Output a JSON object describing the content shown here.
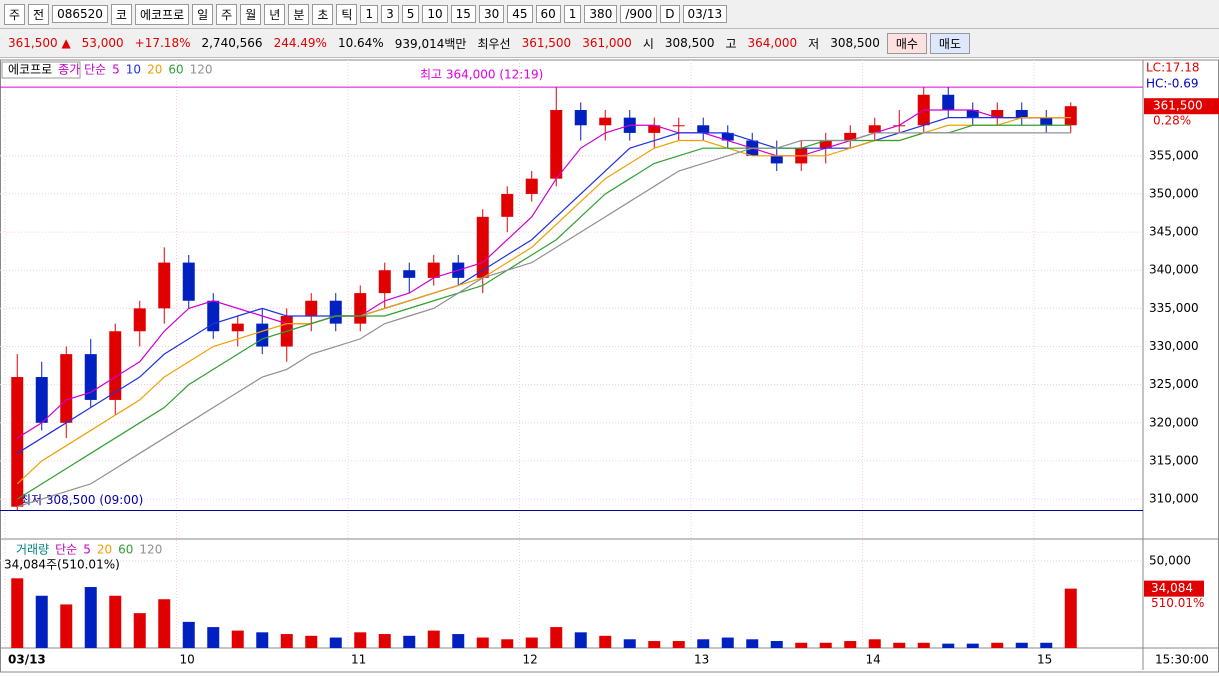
{
  "toolbar": {
    "items": [
      "주",
      "전",
      "086520",
      "코",
      "에코프로",
      "일",
      "주",
      "월",
      "년",
      "분",
      "초",
      "틱",
      "1",
      "3",
      "5",
      "10",
      "15",
      "30",
      "45",
      "60",
      "1",
      "380",
      "/900",
      "D",
      "03/13"
    ]
  },
  "info": {
    "items": [
      {
        "text": "361,500 ▲",
        "color": "#e00000"
      },
      {
        "text": "53,000",
        "color": "#e00000"
      },
      {
        "text": "+17.18%",
        "color": "#e00000"
      },
      {
        "text": "2,740,566",
        "color": "#000"
      },
      {
        "text": "244.49%",
        "color": "#e00000"
      },
      {
        "text": "10.64%",
        "color": "#000"
      },
      {
        "text": "939,014백만",
        "color": "#000"
      },
      {
        "text": "최우선",
        "color": "#000"
      },
      {
        "text": "361,500",
        "color": "#e00000"
      },
      {
        "text": "361,000",
        "color": "#e00000"
      },
      {
        "text": "시",
        "color": "#000"
      },
      {
        "text": "308,500",
        "color": "#000"
      },
      {
        "text": "고",
        "color": "#000"
      },
      {
        "text": "364,000",
        "color": "#e00000"
      },
      {
        "text": "저",
        "color": "#000"
      },
      {
        "text": "308,500",
        "color": "#000"
      }
    ],
    "buy": "매수",
    "sell": "매도"
  },
  "chart_data": {
    "type": "candlestick",
    "name": "에코프로",
    "legend_title": "종가 단순",
    "open": [
      309000,
      326000,
      320000,
      329000,
      323000,
      332000,
      335000,
      341000,
      336000,
      332000,
      333000,
      330000,
      334000,
      336000,
      333000,
      337000,
      340000,
      339000,
      341000,
      339000,
      347000,
      350000,
      352000,
      361000,
      359000,
      360000,
      358000,
      359000,
      359000,
      358000,
      357000,
      355000,
      354000,
      356000,
      357000,
      358000,
      359000,
      359000,
      363000,
      361000,
      360000,
      361000,
      360000,
      359000
    ],
    "high": [
      329000,
      328000,
      330000,
      331000,
      333000,
      336000,
      343000,
      342000,
      337000,
      334000,
      335000,
      335000,
      337000,
      337000,
      338000,
      341000,
      341000,
      342000,
      342000,
      348000,
      351000,
      353000,
      364000,
      362000,
      361000,
      361000,
      360000,
      360000,
      360000,
      359000,
      358000,
      357000,
      357000,
      358000,
      359000,
      360000,
      361000,
      364000,
      364000,
      362000,
      362000,
      362000,
      361000,
      362000
    ],
    "low": [
      308500,
      319000,
      318000,
      322000,
      321000,
      330000,
      333000,
      335000,
      331000,
      330000,
      329000,
      328000,
      332000,
      332000,
      332000,
      335000,
      337000,
      338000,
      338000,
      337000,
      345000,
      349000,
      351000,
      357000,
      357000,
      357000,
      356000,
      357000,
      357000,
      356000,
      355000,
      353000,
      353000,
      354000,
      356000,
      357000,
      358000,
      358000,
      360000,
      359000,
      359000,
      359000,
      358000,
      358000
    ],
    "close": [
      326000,
      320000,
      329000,
      323000,
      332000,
      335000,
      341000,
      336000,
      332000,
      333000,
      330000,
      334000,
      336000,
      333000,
      337000,
      340000,
      339000,
      341000,
      339000,
      347000,
      350000,
      352000,
      361000,
      359000,
      360000,
      358000,
      359000,
      359000,
      358000,
      357000,
      355000,
      354000,
      356000,
      357000,
      358000,
      359000,
      359000,
      363000,
      361000,
      360000,
      361000,
      360000,
      359000,
      361500
    ],
    "up_color": "#e00000",
    "down_color": "#0020c0",
    "ma": [
      {
        "name": "5",
        "color": "#d000d0",
        "values": [
          318000,
          320000,
          323000,
          324000,
          326000,
          328000,
          332000,
          335000,
          336000,
          335000,
          334000,
          333000,
          333000,
          334000,
          334000,
          336000,
          337000,
          339000,
          340000,
          341000,
          344000,
          347000,
          352000,
          356000,
          358000,
          359000,
          359000,
          358000,
          358000,
          357000,
          356000,
          355000,
          355000,
          356000,
          357000,
          358000,
          359000,
          361000,
          361000,
          361000,
          360000,
          360000,
          360000,
          360000
        ]
      },
      {
        "name": "10",
        "color": "#2030e0",
        "values": [
          316000,
          318000,
          320000,
          322000,
          324000,
          326000,
          329000,
          331000,
          333000,
          334000,
          335000,
          334000,
          334000,
          334000,
          334000,
          335000,
          336000,
          337000,
          338000,
          340000,
          342000,
          344000,
          347000,
          350000,
          353000,
          356000,
          357000,
          358000,
          358000,
          358000,
          357000,
          356000,
          356000,
          356000,
          356000,
          357000,
          358000,
          359000,
          360000,
          360000,
          360000,
          360000,
          360000,
          360000
        ]
      },
      {
        "name": "20",
        "color": "#f0a000",
        "values": [
          312000,
          315000,
          317000,
          319000,
          321000,
          323000,
          326000,
          328000,
          330000,
          331000,
          332000,
          333000,
          333000,
          334000,
          334000,
          335000,
          336000,
          337000,
          338000,
          339000,
          341000,
          343000,
          346000,
          349000,
          352000,
          354000,
          356000,
          357000,
          357000,
          356000,
          355000,
          355000,
          355000,
          355000,
          356000,
          357000,
          357000,
          358000,
          359000,
          359000,
          359000,
          360000,
          360000,
          360000
        ]
      },
      {
        "name": "60",
        "color": "#30a030",
        "values": [
          310000,
          312000,
          314000,
          316000,
          318000,
          320000,
          322000,
          325000,
          327000,
          329000,
          331000,
          332000,
          333000,
          334000,
          334000,
          334000,
          335000,
          336000,
          337000,
          338000,
          340000,
          342000,
          344000,
          347000,
          350000,
          352000,
          354000,
          355000,
          356000,
          356000,
          356000,
          356000,
          356000,
          357000,
          357000,
          357000,
          357000,
          358000,
          358000,
          359000,
          359000,
          359000,
          359000,
          359000
        ]
      },
      {
        "name": "120",
        "color": "#909090",
        "values": [
          309000,
          310000,
          311000,
          312000,
          314000,
          316000,
          318000,
          320000,
          322000,
          324000,
          326000,
          327000,
          329000,
          330000,
          331000,
          333000,
          334000,
          335000,
          337000,
          339000,
          340000,
          341000,
          343000,
          345000,
          347000,
          349000,
          351000,
          353000,
          354000,
          355000,
          356000,
          356000,
          357000,
          357000,
          357000,
          358000,
          358000,
          358000,
          358000,
          358000,
          358000,
          358000,
          358000,
          358000
        ]
      }
    ],
    "ylim": [
      304900,
      366770
    ],
    "yticks": [
      {
        "value": 310000,
        "label": "310,000"
      },
      {
        "value": 315000,
        "label": "315,000"
      },
      {
        "value": 320000,
        "label": "320,000"
      },
      {
        "value": 325000,
        "label": "325,000"
      },
      {
        "value": 330000,
        "label": "330,000"
      },
      {
        "value": 335000,
        "label": "335,000"
      },
      {
        "value": 340000,
        "label": "340,000"
      },
      {
        "value": 345000,
        "label": "345,000"
      },
      {
        "value": 350000,
        "label": "350,000"
      },
      {
        "value": 355000,
        "label": "355,000"
      }
    ],
    "xticks": [
      {
        "value": 0,
        "label": "03/13"
      },
      {
        "value": 7,
        "label": "10"
      },
      {
        "value": 14,
        "label": "11"
      },
      {
        "value": 21,
        "label": "12"
      },
      {
        "value": 28,
        "label": "13"
      },
      {
        "value": 35,
        "label": "14"
      },
      {
        "value": 42,
        "label": "15"
      }
    ],
    "high_line": {
      "value": 364000,
      "label": "최고 364,000 (12:19)",
      "color": "#e000e0"
    },
    "low_line": {
      "value": 308500,
      "label": "최저 308,500 (09:00)",
      "color": "#0000a0"
    },
    "last": {
      "value": 361500,
      "label": "361,500"
    },
    "last_change": "0.28%",
    "lc": "LC:17.18",
    "hc": "HC:-0.69",
    "time_label": "15:30:00",
    "volume": {
      "title": "거래량",
      "legend_title": "단순",
      "legend": [
        {
          "name": "5",
          "color": "#d000d0"
        },
        {
          "name": "20",
          "color": "#f0a000"
        },
        {
          "name": "60",
          "color": "#30a030"
        },
        {
          "name": "120",
          "color": "#909090"
        }
      ],
      "current": "34,084주(510.01%)",
      "values": [
        40000,
        30000,
        25000,
        35000,
        30000,
        20000,
        28000,
        15000,
        12000,
        10000,
        9000,
        8000,
        7000,
        6000,
        9000,
        8000,
        7000,
        10000,
        8000,
        6000,
        5000,
        6000,
        12000,
        9000,
        7000,
        5000,
        4000,
        4000,
        5000,
        6000,
        5000,
        4000,
        3000,
        3000,
        4000,
        5000,
        3000,
        3000,
        2500,
        2500,
        3000,
        3000,
        3000,
        34084
      ],
      "ylim": [
        0,
        62000
      ],
      "yticks": [
        {
          "value": 50000,
          "label": "50,000"
        }
      ],
      "last": {
        "value": 34084,
        "label": "34,084"
      },
      "last_pct": "510.01%"
    }
  }
}
